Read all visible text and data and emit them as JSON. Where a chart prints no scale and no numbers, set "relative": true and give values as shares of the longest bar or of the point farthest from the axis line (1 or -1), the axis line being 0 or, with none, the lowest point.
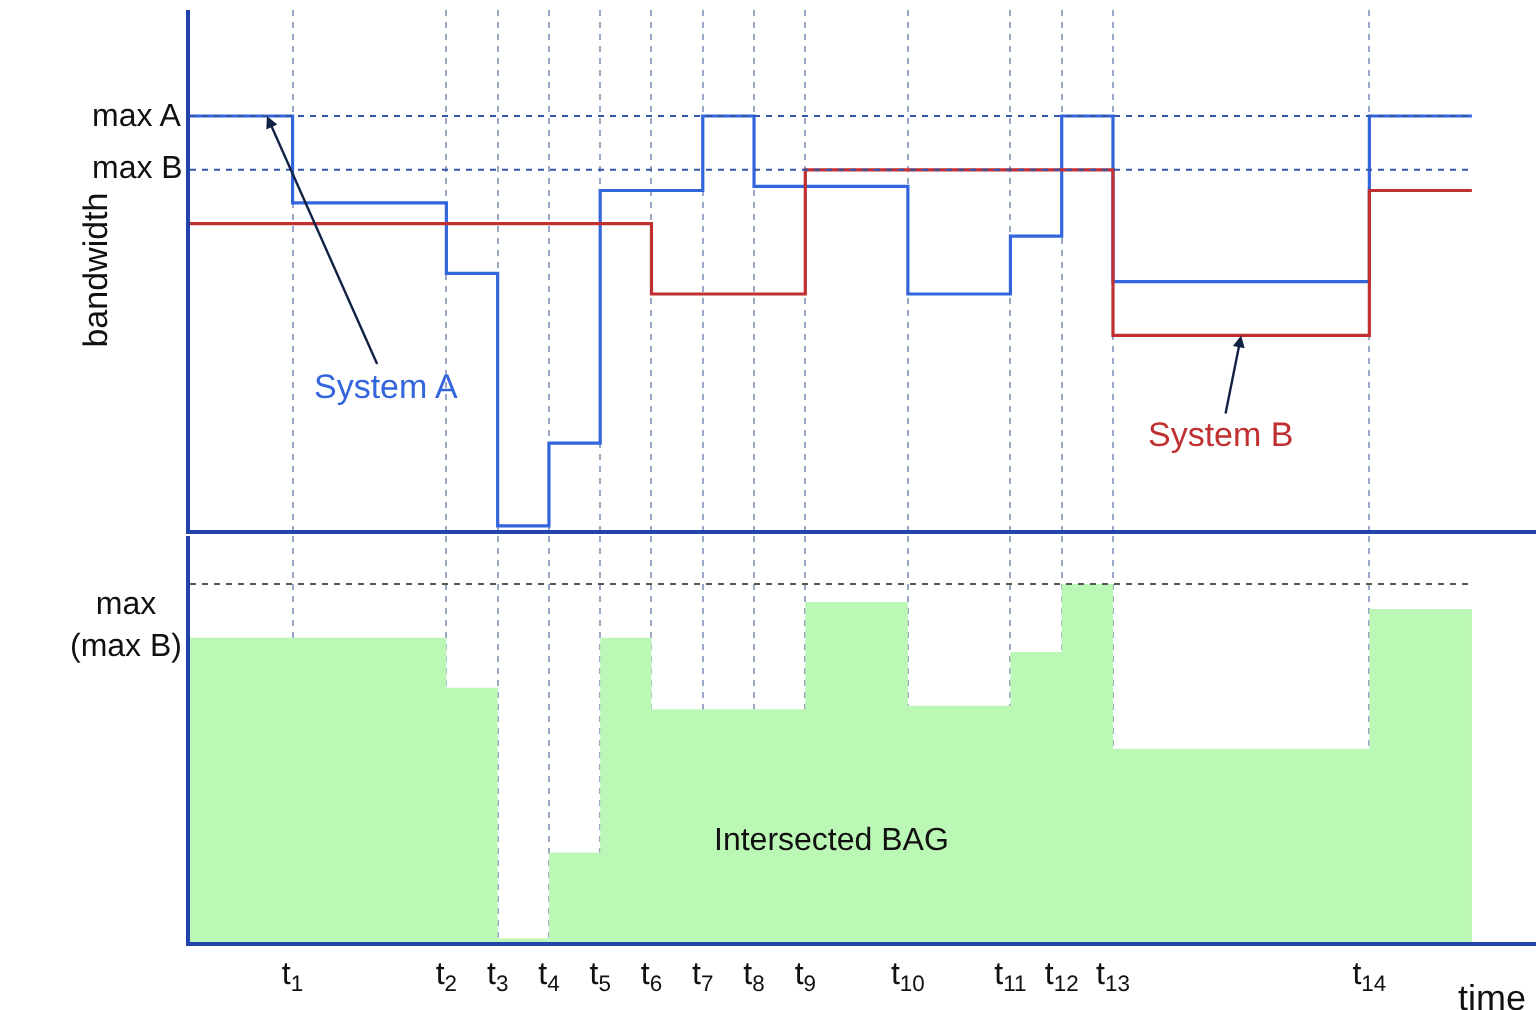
{
  "chart_data": [
    {
      "type": "step",
      "relative": true,
      "ylabel": "bandwidth",
      "tick_labels": false,
      "grid": "x",
      "legend": false,
      "line_style": "solid",
      "marker": "none",
      "categories": [
        null,
        null,
        "t$_{1}$",
        null,
        null,
        "t$_{2}$",
        "t$_{3}$",
        "t$_{4}$",
        "t$_{5}$",
        "t$_{6}$",
        "t$_{7}$",
        "t$_{8}$",
        "t$_{9}$",
        null,
        "t$_{10}$",
        null,
        "t$_{11}$",
        "t$_{12}$",
        "t$_{13}$",
        null,
        null,
        null,
        null,
        "t$_{14}$",
        null,
        null
      ],
      "series": [
        {
          "name": "System A",
          "color": "#3366dd",
          "values": [
            1.0,
            1.0,
            0.79,
            0.79,
            0.79,
            0.62,
            0.01,
            0.21,
            0.82,
            0.82,
            1.0,
            0.83,
            0.83,
            0.83,
            0.57,
            0.57,
            0.71,
            1.0,
            0.6,
            0.6,
            0.6,
            0.6,
            0.6,
            1.0,
            1.0,
            1.0
          ]
        },
        {
          "name": "System B",
          "color": "#c03030",
          "values": [
            0.74,
            0.74,
            0.74,
            0.74,
            0.74,
            0.74,
            0.74,
            0.74,
            0.74,
            0.57,
            0.57,
            0.57,
            0.87,
            0.87,
            0.87,
            0.87,
            0.87,
            0.87,
            0.47,
            0.47,
            0.47,
            0.47,
            0.47,
            0.82,
            0.82,
            0.82
          ]
        }
      ],
      "ref_lines": [
        {
          "axis": "y",
          "value": 1.0,
          "label": "max A",
          "color": "#3355aa",
          "line_style": "dotted"
        },
        {
          "axis": "y",
          "value": 0.87,
          "label": "max B",
          "color": "#3355aa",
          "line_style": "dotted"
        }
      ]
    },
    {
      "type": "step",
      "relative": true,
      "xlabel": "time",
      "tick_labels": "x",
      "grid": "x",
      "legend": false,
      "line_style": "solid",
      "marker": "none",
      "categories": [
        null,
        null,
        "t$_{1}$",
        null,
        null,
        "t$_{2}$",
        "t$_{3}$",
        "t$_{4}$",
        "t$_{5}$",
        "t$_{6}$",
        "t$_{7}$",
        "t$_{8}$",
        "t$_{9}$",
        null,
        "t$_{10}$",
        null,
        "t$_{11}$",
        "t$_{12}$",
        "t$_{13}$",
        null,
        null,
        null,
        null,
        "t$_{14}$",
        null,
        null
      ],
      "series": [
        {
          "name": "Intersected BAG",
          "type": "area",
          "color": "#bbf7b5",
          "values": [
            0.85,
            0.85,
            0.85,
            0.85,
            0.85,
            0.71,
            0.01,
            0.25,
            0.85,
            0.65,
            0.65,
            0.65,
            0.95,
            0.95,
            0.66,
            0.66,
            0.81,
            1.0,
            0.54,
            0.54,
            0.54,
            0.54,
            0.54,
            0.93,
            0.93,
            0.93
          ]
        }
      ],
      "ref_lines": [
        {
          "axis": "y",
          "value": 1.0,
          "label": "max\n(max B)",
          "color": "#555555",
          "line_style": "dotted"
        }
      ]
    }
  ]
}
